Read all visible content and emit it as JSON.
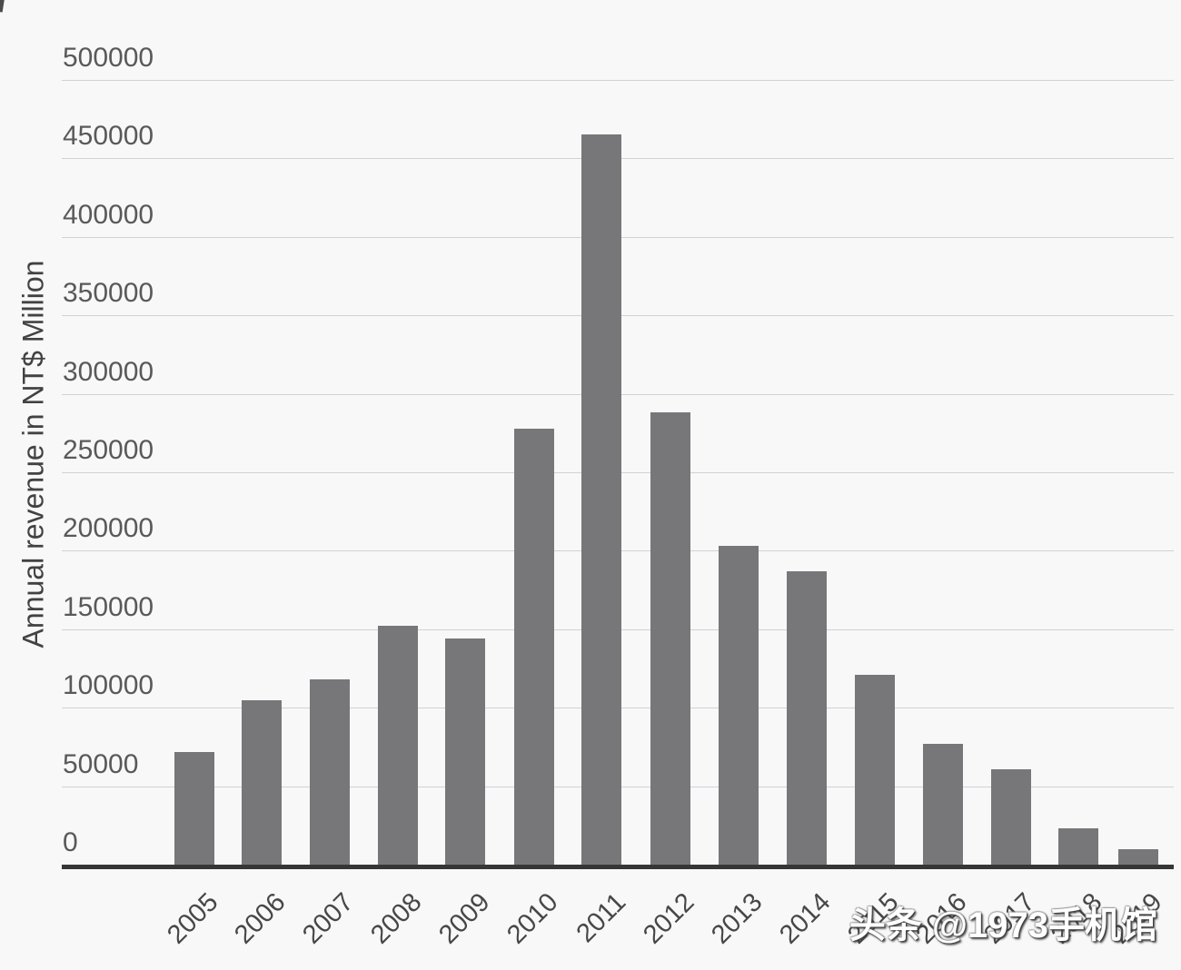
{
  "colors": {
    "background": "#f8f8f9",
    "bar": "#77777a",
    "gridline": "#d2d2d4",
    "axis_line": "#363636",
    "y_tick_label": "#595959",
    "x_tick_label": "#474747",
    "axis_title": "#424242",
    "watermark_text": "#ffffff"
  },
  "chart_data": {
    "type": "bar",
    "title": "",
    "xlabel": "",
    "ylabel": "Annual revenue in NT$ Million",
    "categories": [
      "2005",
      "2006",
      "2007",
      "2008",
      "2009",
      "2010",
      "2011",
      "2012",
      "2013",
      "2014",
      "2015",
      "2016",
      "2017",
      "2018",
      "2019"
    ],
    "values": [
      72000,
      105000,
      118000,
      152000,
      144000,
      278000,
      465000,
      288000,
      203000,
      187000,
      121000,
      77000,
      61000,
      23000,
      10000
    ],
    "ylim": [
      0,
      500000
    ],
    "yticks": [
      0,
      50000,
      100000,
      150000,
      200000,
      250000,
      300000,
      350000,
      400000,
      450000,
      500000
    ],
    "grid": true,
    "legend": "none"
  },
  "watermark": {
    "text": "头条 @1973手机馆"
  }
}
